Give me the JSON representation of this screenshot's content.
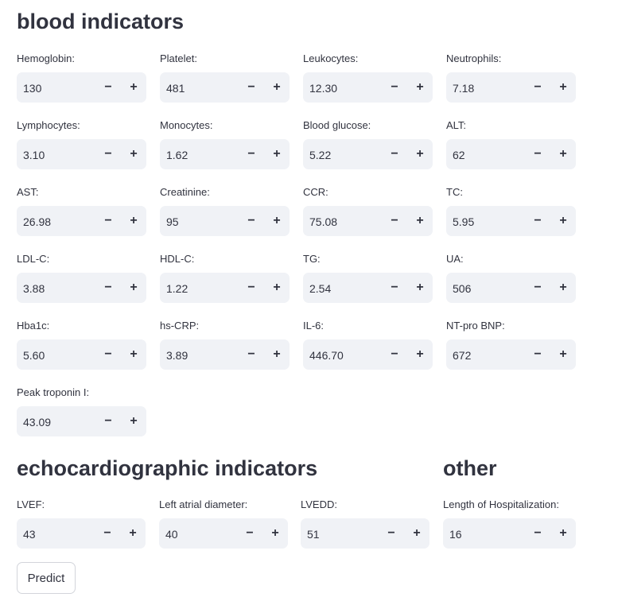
{
  "sections": {
    "blood": "blood indicators",
    "echo": "echocardiographic indicators",
    "other": "other"
  },
  "step": {
    "minus": "−",
    "plus": "+"
  },
  "fields": {
    "hemoglobin": {
      "label": "Hemoglobin:",
      "value": "130"
    },
    "platelet": {
      "label": "Platelet:",
      "value": "481"
    },
    "leukocytes": {
      "label": "Leukocytes:",
      "value": "12.30"
    },
    "neutrophils": {
      "label": "Neutrophils:",
      "value": "7.18"
    },
    "lymphocytes": {
      "label": "Lymphocytes:",
      "value": "3.10"
    },
    "monocytes": {
      "label": "Monocytes:",
      "value": "1.62"
    },
    "blood_glucose": {
      "label": "Blood glucose:",
      "value": "5.22"
    },
    "alt": {
      "label": "ALT:",
      "value": "62"
    },
    "ast": {
      "label": "AST:",
      "value": "26.98"
    },
    "creatinine": {
      "label": "Creatinine:",
      "value": "95"
    },
    "ccr": {
      "label": "CCR:",
      "value": "75.08"
    },
    "tc": {
      "label": "TC:",
      "value": "5.95"
    },
    "ldl_c": {
      "label": "LDL-C:",
      "value": "3.88"
    },
    "hdl_c": {
      "label": "HDL-C:",
      "value": "1.22"
    },
    "tg": {
      "label": "TG:",
      "value": "2.54"
    },
    "ua": {
      "label": "UA:",
      "value": "506"
    },
    "hba1c": {
      "label": "Hba1c:",
      "value": "5.60"
    },
    "hs_crp": {
      "label": "hs-CRP:",
      "value": "3.89"
    },
    "il_6": {
      "label": "IL-6:",
      "value": "446.70"
    },
    "nt_pro_bnp": {
      "label": "NT-pro BNP:",
      "value": "672"
    },
    "peak_troponin": {
      "label": "Peak troponin I:",
      "value": "43.09"
    },
    "lvef": {
      "label": "LVEF:",
      "value": "43"
    },
    "left_atrial_diameter": {
      "label": "Left atrial diameter:",
      "value": "40"
    },
    "lvedd": {
      "label": "LVEDD:",
      "value": "51"
    },
    "hospitalization_length": {
      "label": "Length of Hospitalization:",
      "value": "16"
    }
  },
  "predict_label": "Predict"
}
